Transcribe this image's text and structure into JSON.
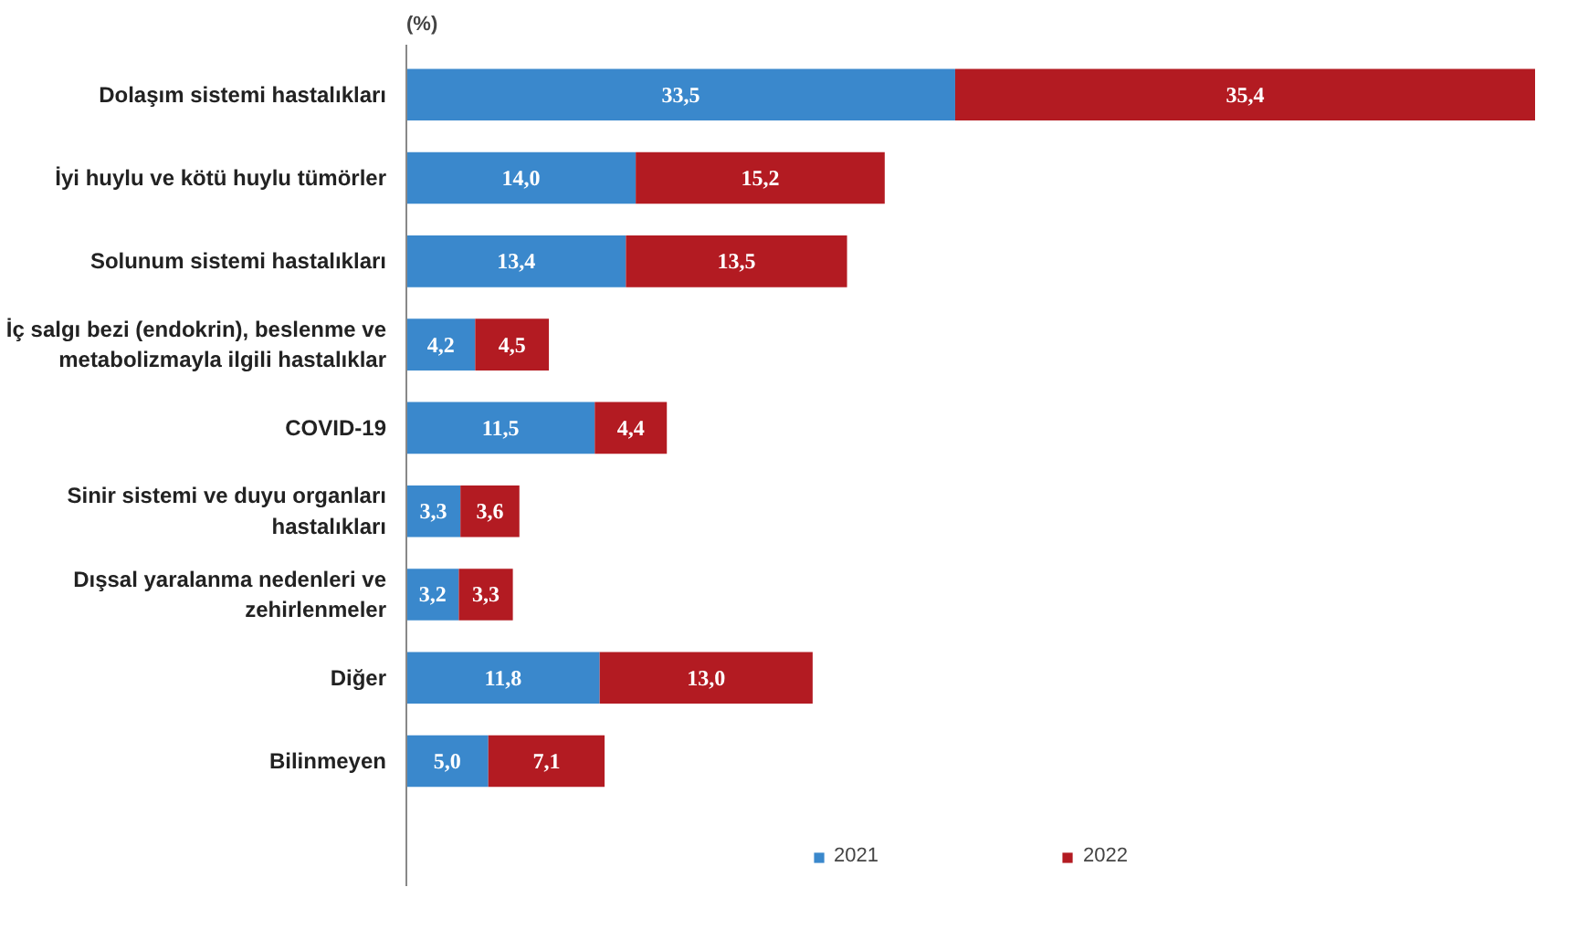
{
  "chart_data": {
    "type": "bar",
    "orientation": "horizontal",
    "stacked": true,
    "title": "(%)",
    "categories": [
      "Dolaşım sistemi hastalıkları",
      "İyi huylu ve kötü huylu tümörler",
      "Solunum sistemi hastalıkları",
      "İç salgı bezi (endokrin), beslenme ve\nmetabolizmayla ilgili hastalıklar",
      "COVID-19",
      "Sinir sistemi ve duyu organları\nhastalıkları",
      "Dışsal yaralanma nedenleri ve\nzehirlenmeler",
      "Diğer",
      "Bilinmeyen"
    ],
    "series": [
      {
        "name": "2021",
        "color": "#3a88cc",
        "values": [
          33.5,
          14.0,
          13.4,
          4.2,
          11.5,
          3.3,
          3.2,
          11.8,
          5.0
        ],
        "value_labels": [
          "33,5",
          "14,0",
          "13,4",
          "4,2",
          "11,5",
          "3,3",
          "3,2",
          "11,8",
          "5,0"
        ]
      },
      {
        "name": "2022",
        "color": "#b31b22",
        "values": [
          35.4,
          15.2,
          13.5,
          4.5,
          4.4,
          3.6,
          3.3,
          13.0,
          7.1
        ],
        "value_labels": [
          "35,4",
          "15,2",
          "13,5",
          "4,5",
          "4,4",
          "3,6",
          "3,3",
          "13,0",
          "7,1"
        ]
      }
    ],
    "legend": "bottom",
    "grid": false
  }
}
